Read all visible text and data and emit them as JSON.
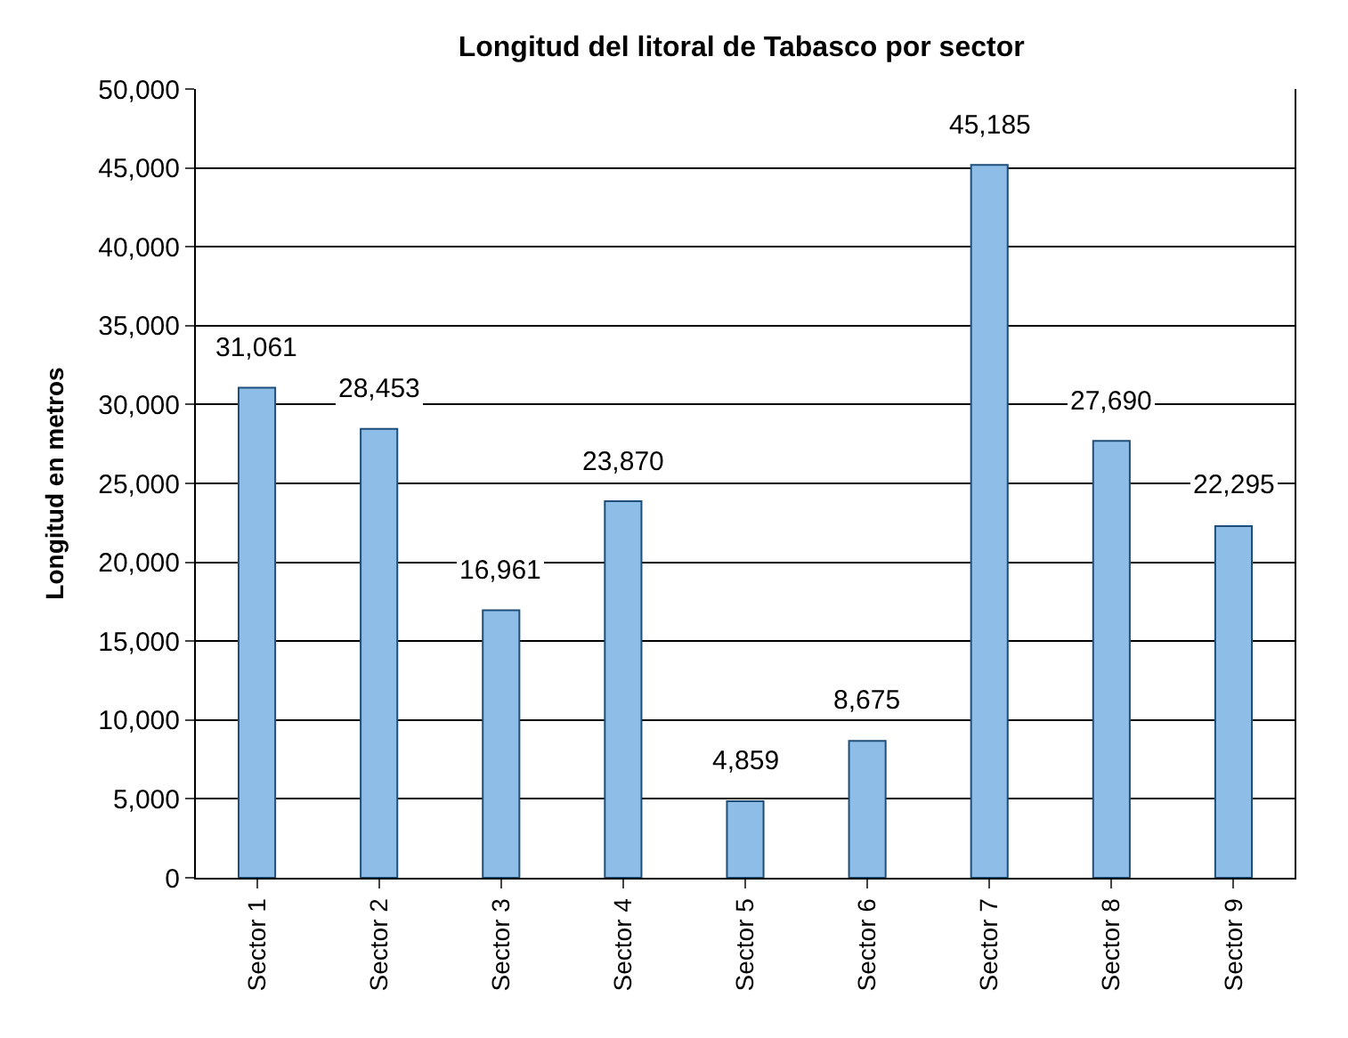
{
  "chart_data": {
    "type": "bar",
    "title": "Longitud del litoral de Tabasco por sector",
    "ylabel": "Longitud en metros",
    "categories": [
      "Sector 1",
      "Sector 2",
      "Sector 3",
      "Sector 4",
      "Sector 5",
      "Sector 6",
      "Sector 7",
      "Sector 8",
      "Sector 9"
    ],
    "values": [
      31061,
      28453,
      16961,
      23870,
      4859,
      8675,
      45185,
      27690,
      22295
    ],
    "color": "#8ebde8",
    "ylim": [
      0,
      50000
    ],
    "yticks": [
      0,
      {
        "value": 5000,
        "label": "5,000"
      },
      {
        "value": 10000,
        "label": "10,000"
      },
      {
        "value": 15000,
        "label": "15,000"
      },
      {
        "value": 20000,
        "label": "20,000"
      },
      {
        "value": 25000,
        "label": "25,000"
      },
      {
        "value": 30000,
        "label": "30,000"
      },
      {
        "value": 35000,
        "label": "35,000"
      },
      {
        "value": 40000,
        "label": "40,000"
      },
      {
        "value": 45000,
        "label": "45,000"
      },
      {
        "value": 50000,
        "label": "50,000"
      }
    ],
    "value_labels": [
      "31,061",
      "28,453",
      "16,961",
      "23,870",
      "4,859",
      "8,675",
      "45,185",
      "27,690",
      "22,295"
    ],
    "grid": "y"
  }
}
